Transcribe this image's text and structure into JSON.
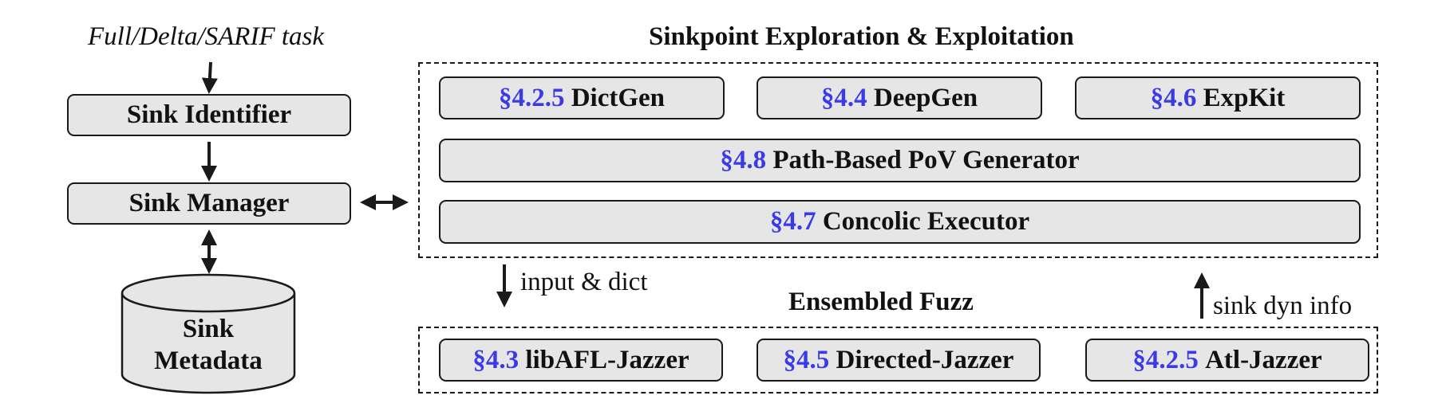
{
  "left": {
    "task_label": "Full/Delta/SARIF task",
    "sink_identifier": "Sink Identifier",
    "sink_manager": "Sink Manager",
    "metadata_line1": "Sink",
    "metadata_line2": "Metadata"
  },
  "exploration": {
    "title": "Sinkpoint Exploration & Exploitation",
    "dictgen": {
      "sec": "§4.2.5",
      "name": "DictGen"
    },
    "deepgen": {
      "sec": "§4.4",
      "name": "DeepGen"
    },
    "expkit": {
      "sec": "§4.6",
      "name": "ExpKit"
    },
    "pov": {
      "sec": "§4.8",
      "name": "Path-Based PoV Generator"
    },
    "concolic": {
      "sec": "§4.7",
      "name": "Concolic Executor"
    }
  },
  "flow": {
    "input_dict": "input & dict",
    "sink_dyn_info": "sink dyn info"
  },
  "fuzz": {
    "title": "Ensembled Fuzz",
    "libafl": {
      "sec": "§4.3",
      "name": "libAFL-Jazzer"
    },
    "directed": {
      "sec": "§4.5",
      "name": "Directed-Jazzer"
    },
    "atl": {
      "sec": "§4.2.5",
      "name": "Atl-Jazzer"
    }
  },
  "colors": {
    "section_ref": "#3a3ae6",
    "box_fill": "#e6e6e6",
    "stroke": "#1a1a1a"
  }
}
